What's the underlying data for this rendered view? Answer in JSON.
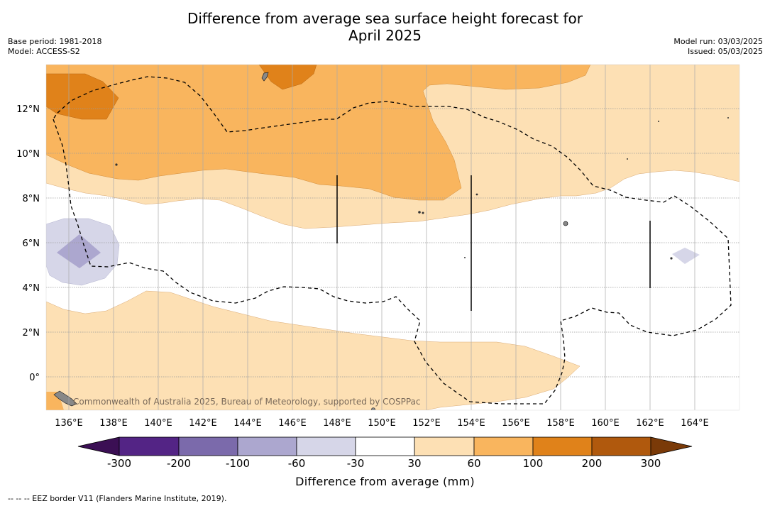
{
  "title_line1": "Difference from average sea surface height forecast for",
  "title_line2": "April 2025",
  "base_period": "Base period: 1981-2018",
  "model": "Model: ACCESS-S2",
  "model_run": "Model run: 03/03/2025",
  "issued": "Issued: 05/03/2025",
  "credit": "Commonwealth of Australia 2025, Bureau of Meteorology, supported by COSPPac",
  "footnote": "-- -- -- EEZ border V11 (Flanders Marine Institute, 2019).",
  "axes": {
    "lon_labels": [
      "136°E",
      "138°E",
      "140°E",
      "142°E",
      "144°E",
      "146°E",
      "148°E",
      "150°E",
      "152°E",
      "154°E",
      "156°E",
      "158°E",
      "160°E",
      "162°E",
      "164°E"
    ],
    "lat_labels": [
      "12°N",
      "10°N",
      "8°N",
      "6°N",
      "4°N",
      "2°N",
      "0°"
    ]
  },
  "colorbar": {
    "title": "Difference from average (mm)",
    "tick_labels": [
      "-300",
      "-200",
      "-100",
      "-60",
      "-30",
      "30",
      "60",
      "100",
      "200",
      "300"
    ],
    "colors": [
      "#3b0f54",
      "#532485",
      "#7b6aab",
      "#aca7cf",
      "#d6d6e8",
      "#ffffff",
      "#fde0b4",
      "#f9b55e",
      "#e0821a",
      "#b0590d",
      "#7a3a08"
    ]
  }
}
